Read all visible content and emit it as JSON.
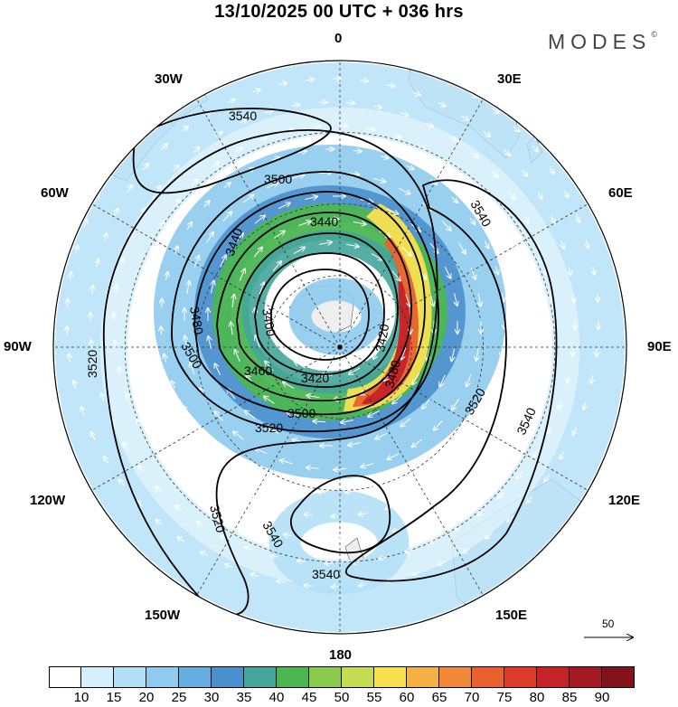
{
  "header": {
    "title": "13/10/2025  00 UTC  + 036 hrs",
    "brand": "MODES",
    "brand_mark": "©"
  },
  "map": {
    "projection": "south-polar-stereographic",
    "longitude_labels": [
      "0",
      "30E",
      "60E",
      "90E",
      "120E",
      "150E",
      "180",
      "150W",
      "120W",
      "90W",
      "60W",
      "30W"
    ],
    "longitude_label_degrees": [
      0,
      30,
      60,
      90,
      120,
      150,
      180,
      210,
      240,
      270,
      300,
      330
    ],
    "ocean_color": "#ffffff",
    "land_color": "#eeeeee",
    "wind_speed_field": "shaded",
    "geopotential_contours": {
      "interval_label_values": [
        "3420",
        "3440",
        "3460",
        "3480",
        "3500",
        "3520",
        "3540"
      ],
      "placed_labels": [
        "3540",
        "3500",
        "3440",
        "3440",
        "3480",
        "3540",
        "3500",
        "3420",
        "3400",
        "3460",
        "3420",
        "3480",
        "3520",
        "3500",
        "3520",
        "3520",
        "3540",
        "3540",
        "3540",
        "3520"
      ]
    },
    "wind_vector_color": "#ffffff"
  },
  "vector_legend": {
    "value": "50"
  },
  "colorbar": {
    "ticks": [
      "10",
      "15",
      "20",
      "25",
      "30",
      "35",
      "40",
      "45",
      "50",
      "55",
      "60",
      "65",
      "70",
      "75",
      "80",
      "85",
      "90"
    ],
    "colors": [
      "#ffffff",
      "#d6f0fb",
      "#b3e0f7",
      "#8ecbee",
      "#66aee0",
      "#4b8fcc",
      "#45a59a",
      "#4cb653",
      "#8acb4e",
      "#c5dc52",
      "#f8e052",
      "#f6b146",
      "#f18839",
      "#e8602e",
      "#dd3b2a",
      "#c42327",
      "#a51a22",
      "#82131b"
    ]
  }
}
